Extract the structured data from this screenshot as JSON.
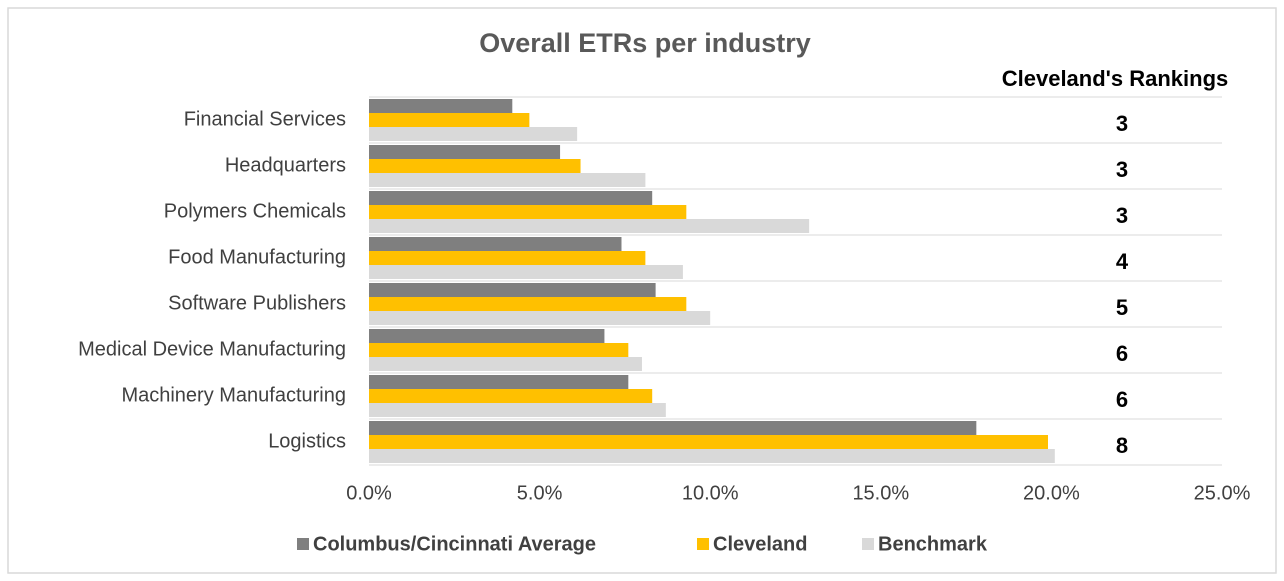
{
  "chart_data": {
    "type": "hbar",
    "title": "Overall ETRs per industry",
    "categories": [
      "Financial Services",
      "Headquarters",
      "Polymers Chemicals",
      "Food Manufacturing",
      "Software Publishers",
      "Medical Device Manufacturing",
      "Machinery Manufacturing",
      "Logistics"
    ],
    "series": [
      {
        "name": "Columbus/Cincinnati Average",
        "color": "#7f7f7f",
        "values": [
          4.2,
          5.6,
          8.3,
          7.4,
          8.4,
          6.9,
          7.6,
          17.8
        ]
      },
      {
        "name": "Cleveland",
        "color": "#ffc000",
        "values": [
          4.7,
          6.2,
          9.3,
          8.1,
          9.3,
          7.6,
          8.3,
          19.9
        ]
      },
      {
        "name": "Benchmark",
        "color": "#d9d9d9",
        "values": [
          6.1,
          8.1,
          12.9,
          9.2,
          10.0,
          8.0,
          8.7,
          20.1
        ]
      }
    ],
    "xlim": [
      0,
      25
    ],
    "xticks": [
      {
        "value": 0,
        "label": "0.0%"
      },
      {
        "value": 5,
        "label": "5.0%"
      },
      {
        "value": 10,
        "label": "10.0%"
      },
      {
        "value": 15,
        "label": "15.0%"
      },
      {
        "value": 20,
        "label": "20.0%"
      },
      {
        "value": 25,
        "label": "25.0%"
      }
    ],
    "legend": "bottom",
    "rankings": {
      "title": "Cleveland's Rankings",
      "values": [
        3,
        3,
        3,
        4,
        5,
        6,
        6,
        8
      ]
    }
  }
}
